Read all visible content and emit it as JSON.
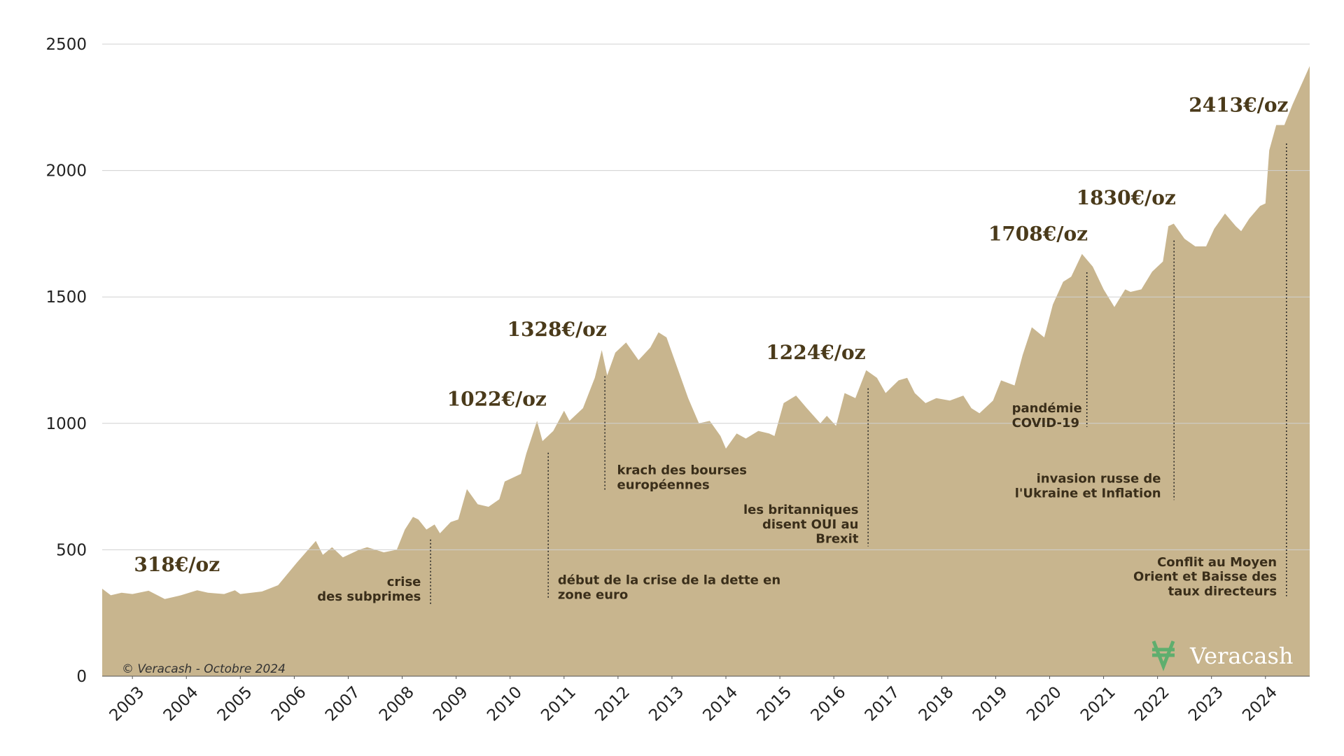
{
  "chart_data": {
    "type": "area",
    "x": [
      2002.44,
      2002.6,
      2002.8,
      2003.0,
      2003.3,
      2003.6,
      2003.9,
      2004.2,
      2004.4,
      2004.7,
      2004.9,
      2005.0,
      2005.4,
      2005.7,
      2006.05,
      2006.4,
      2006.53,
      2006.7,
      2006.9,
      2007.2,
      2007.35,
      2007.66,
      2007.9,
      2008.05,
      2008.2,
      2008.3,
      2008.45,
      2008.6,
      2008.7,
      2008.9,
      2009.04,
      2009.2,
      2009.4,
      2009.6,
      2009.8,
      2009.9,
      2010.2,
      2010.3,
      2010.5,
      2010.6,
      2010.8,
      2011.0,
      2011.1,
      2011.35,
      2011.57,
      2011.7,
      2011.8,
      2011.95,
      2012.15,
      2012.38,
      2012.6,
      2012.75,
      2012.9,
      2013.1,
      2013.3,
      2013.5,
      2013.7,
      2013.9,
      2014.0,
      2014.2,
      2014.37,
      2014.6,
      2014.8,
      2014.9,
      2015.07,
      2015.3,
      2015.5,
      2015.75,
      2015.87,
      2016.04,
      2016.2,
      2016.4,
      2016.6,
      2016.8,
      2016.96,
      2017.2,
      2017.36,
      2017.5,
      2017.7,
      2017.9,
      2018.15,
      2018.4,
      2018.55,
      2018.7,
      2018.95,
      2019.1,
      2019.35,
      2019.5,
      2019.67,
      2019.9,
      2020.06,
      2020.25,
      2020.4,
      2020.6,
      2020.8,
      2021.0,
      2021.2,
      2021.4,
      2021.5,
      2021.7,
      2021.9,
      2022.1,
      2022.2,
      2022.3,
      2022.5,
      2022.7,
      2022.9,
      2023.05,
      2023.25,
      2023.45,
      2023.55,
      2023.7,
      2023.9,
      2024.0,
      2024.07,
      2024.2,
      2024.35,
      2024.5,
      2024.82
    ],
    "values": [
      346,
      320,
      330,
      325,
      338,
      305,
      320,
      340,
      330,
      325,
      340,
      325,
      335,
      360,
      450,
      535,
      480,
      510,
      470,
      500,
      510,
      490,
      500,
      580,
      630,
      620,
      580,
      600,
      565,
      610,
      620,
      740,
      680,
      670,
      700,
      770,
      800,
      880,
      1010,
      930,
      970,
      1050,
      1010,
      1060,
      1180,
      1290,
      1190,
      1280,
      1320,
      1250,
      1300,
      1360,
      1340,
      1220,
      1100,
      1000,
      1010,
      950,
      900,
      960,
      940,
      970,
      960,
      950,
      1080,
      1110,
      1060,
      1000,
      1030,
      990,
      1120,
      1100,
      1210,
      1180,
      1120,
      1170,
      1180,
      1120,
      1080,
      1100,
      1090,
      1110,
      1060,
      1040,
      1090,
      1170,
      1150,
      1270,
      1380,
      1340,
      1470,
      1560,
      1580,
      1670,
      1620,
      1530,
      1460,
      1530,
      1520,
      1530,
      1600,
      1640,
      1780,
      1790,
      1730,
      1700,
      1700,
      1770,
      1830,
      1780,
      1760,
      1810,
      1860,
      1870,
      2080,
      2180,
      2180,
      2260,
      2413
    ],
    "color": "#c8b58e",
    "xlim": [
      2002.44,
      2024.82
    ],
    "xticks": [
      2003,
      2004,
      2005,
      2006,
      2007,
      2008,
      2009,
      2010,
      2011,
      2012,
      2013,
      2014,
      2015,
      2016,
      2017,
      2018,
      2019,
      2020,
      2021,
      2022,
      2023,
      2024
    ],
    "ylim": [
      0,
      2500
    ],
    "yticks": [
      0,
      500,
      1000,
      1500,
      2000,
      2500
    ],
    "grid": true,
    "price_labels": [
      "318€/oz",
      "1022€/oz",
      "1328€/oz",
      "1224€/oz",
      "1708€/oz",
      "1830€/oz",
      "2413€/oz"
    ],
    "events": [
      {
        "lines": [
          "crise",
          "des subprimes"
        ]
      },
      {
        "lines": [
          "début de la crise de la dette en",
          "zone euro"
        ]
      },
      {
        "lines": [
          "krach des bourses",
          "européennes"
        ]
      },
      {
        "lines": [
          "les britanniques",
          "disent OUI au",
          "Brexit"
        ]
      },
      {
        "lines": [
          "pandémie",
          "COVID-19"
        ]
      },
      {
        "lines": [
          "invasion russe de",
          "l'Ukraine et Inflation"
        ]
      },
      {
        "lines": [
          "Conflit au Moyen",
          "Orient et Baisse des",
          "taux directeurs"
        ]
      }
    ],
    "credit": "© Veracash - Octobre 2024",
    "brand": "Veracash"
  }
}
